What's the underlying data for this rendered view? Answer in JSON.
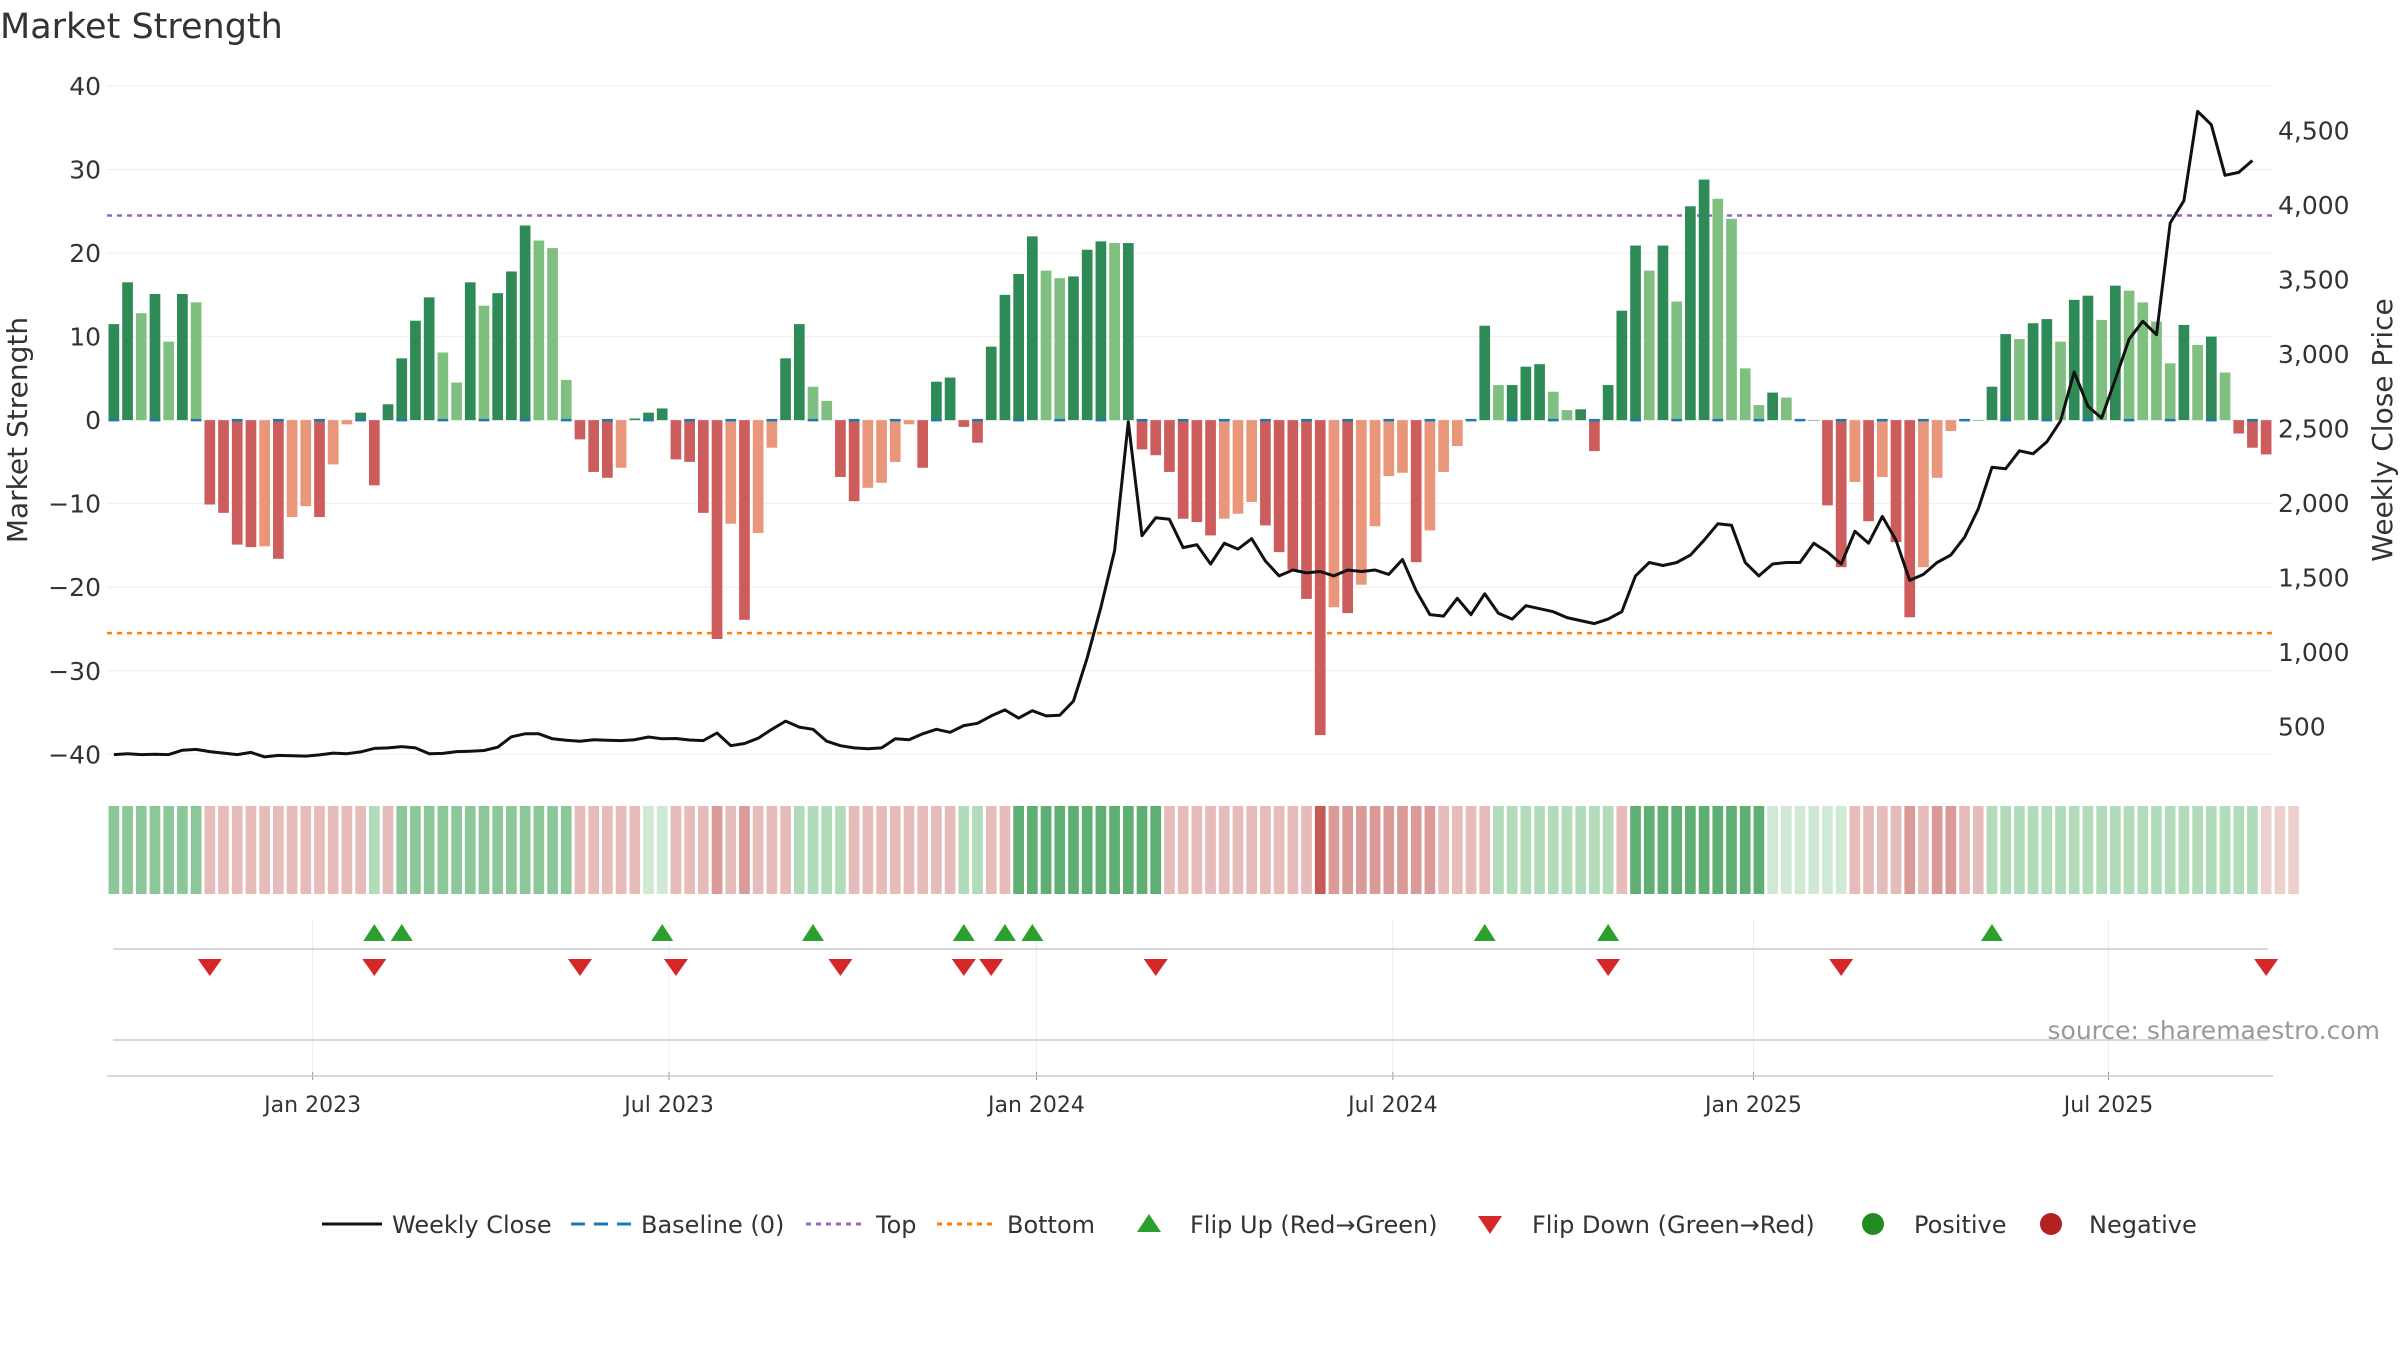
{
  "chart_data": {
    "type": "bar",
    "title": "Market Strength",
    "ylabel": "Market Strength",
    "y2label": "Weekly Close Price",
    "ylim": [
      -42,
      40
    ],
    "y2lim": [
      200,
      4800
    ],
    "yticks": [
      "40",
      "30",
      "20",
      "10",
      "0",
      "−10",
      "−20",
      "−30",
      "−40"
    ],
    "y2ticks": [
      "4,500",
      "4,000",
      "3,500",
      "3,000",
      "2,500",
      "2,000",
      "1,500",
      "1,000",
      "500"
    ],
    "xticks": [
      "Jan 2023",
      "Jul 2023",
      "Jan 2024",
      "Jul 2024",
      "Jan 2025",
      "Jul 2025"
    ],
    "top_line": 24.5,
    "bottom_line": -25.5,
    "source": "source: sharemaestro.com",
    "colors": {
      "pos_dark": "#2e8b57",
      "pos_light": "#7fbf7f",
      "neg_dark": "#cd5c5c",
      "neg_light": "#e9967a",
      "close": "#111111",
      "baseline": "#1f77b4",
      "top": "#9467bd",
      "bottom": "#ff7f0e",
      "flip_up": "#2ca02c",
      "flip_down": "#d62728",
      "positive": "#228b22",
      "negative": "#b22222"
    },
    "legend": [
      {
        "label": "Weekly Close",
        "kind": "line-close"
      },
      {
        "label": "Baseline (0)",
        "kind": "line-baseline"
      },
      {
        "label": "Top",
        "kind": "line-top"
      },
      {
        "label": "Bottom",
        "kind": "line-bottom"
      },
      {
        "label": "Flip Up (Red→Green)",
        "kind": "tri-up"
      },
      {
        "label": "Flip Down (Green→Red)",
        "kind": "tri-down"
      },
      {
        "label": "Positive",
        "kind": "dot-pos"
      },
      {
        "label": "Negative",
        "kind": "dot-neg"
      }
    ],
    "strength": [
      11.5,
      16.5,
      12.8,
      15.1,
      9.4,
      15.1,
      14.1,
      -10.1,
      -11.1,
      -14.9,
      -15.2,
      -15.1,
      -16.6,
      -11.6,
      -10.3,
      -11.6,
      -5.3,
      -0.5,
      0.9,
      -7.8,
      1.9,
      7.4,
      11.9,
      14.7,
      8.1,
      4.5,
      16.5,
      13.7,
      15.2,
      17.8,
      23.3,
      21.5,
      20.6,
      4.8,
      -2.3,
      -6.2,
      -6.9,
      -5.7,
      0.2,
      0.9,
      1.4,
      -4.7,
      -5.0,
      -11.1,
      -26.2,
      -12.4,
      -23.9,
      -13.5,
      -3.3,
      7.4,
      11.5,
      4.0,
      2.3,
      -6.8,
      -9.7,
      -8.1,
      -7.5,
      -5.0,
      -0.5,
      -5.7,
      4.6,
      5.1,
      -0.8,
      -2.7,
      8.8,
      15.0,
      17.5,
      22.0,
      17.9,
      17.0,
      17.2,
      20.4,
      21.4,
      21.2,
      21.2,
      -3.5,
      -4.2,
      -6.2,
      -11.8,
      -12.2,
      -13.8,
      -11.8,
      -11.2,
      -9.8,
      -12.6,
      -15.8,
      -17.9,
      -21.4,
      -37.7,
      -22.4,
      -23.1,
      -19.7,
      -12.7,
      -6.7,
      -6.3,
      -17.0,
      -13.2,
      -6.2,
      -3.1,
      0.0,
      11.3,
      4.2,
      4.2,
      6.4,
      6.7,
      3.4,
      1.2,
      1.3,
      -3.7,
      4.2,
      13.1,
      20.9,
      17.9,
      20.9,
      14.2,
      25.6,
      28.8,
      26.5,
      24.1,
      6.2,
      1.8,
      3.3,
      2.7,
      0.0,
      0.0,
      -10.2,
      -17.6,
      -7.4,
      -12.1,
      -6.8,
      -14.6,
      -23.6,
      -17.6,
      -6.9,
      -1.3,
      0.0,
      0.0,
      4.0,
      10.3,
      9.7,
      11.6,
      12.1,
      9.4,
      14.4,
      14.9,
      12.0,
      16.1,
      15.5,
      14.1,
      11.8,
      6.8,
      11.4,
      9.0,
      10.0,
      5.7,
      -1.6,
      -3.3,
      -4.1
    ],
    "close": [
      310,
      316,
      310,
      312,
      310,
      340,
      345,
      330,
      320,
      310,
      325,
      295,
      305,
      303,
      300,
      308,
      320,
      316,
      328,
      352,
      355,
      364,
      355,
      316,
      318,
      330,
      333,
      338,
      360,
      430,
      450,
      450,
      416,
      406,
      400,
      410,
      407,
      404,
      410,
      428,
      416,
      418,
      408,
      404,
      455,
      370,
      385,
      420,
      480,
      535,
      495,
      480,
      400,
      370,
      355,
      350,
      355,
      417,
      410,
      450,
      480,
      460,
      505,
      520,
      570,
      610,
      555,
      605,
      570,
      575,
      670,
      960,
      1300,
      1680,
      2545,
      1780,
      1900,
      1890,
      1700,
      1720,
      1590,
      1730,
      1690,
      1760,
      1610,
      1510,
      1550,
      1530,
      1540,
      1510,
      1550,
      1540,
      1550,
      1520,
      1620,
      1410,
      1250,
      1240,
      1360,
      1250,
      1390,
      1260,
      1220,
      1310,
      1290,
      1270,
      1230,
      1210,
      1190,
      1220,
      1270,
      1510,
      1600,
      1580,
      1600,
      1650,
      1750,
      1860,
      1850,
      1600,
      1510,
      1590,
      1600,
      1600,
      1730,
      1670,
      1590,
      1810,
      1730,
      1910,
      1750,
      1480,
      1520,
      1600,
      1650,
      1770,
      1960,
      2240,
      2230,
      2350,
      2330,
      2410,
      2550,
      2880,
      2650,
      2570,
      2830,
      3100,
      3220,
      3130,
      3880,
      4030,
      4630,
      4540,
      4200,
      4220,
      4300
    ],
    "flip_up": [
      19,
      21,
      40,
      51,
      62,
      65,
      67,
      100,
      109,
      137
    ],
    "flip_down": [
      7,
      19,
      34,
      41,
      53,
      62,
      64,
      76,
      109,
      126,
      157
    ],
    "segments": [
      {
        "end": 6,
        "sign": "pos",
        "shade": "mid"
      },
      {
        "end": 18,
        "sign": "neg",
        "shade": "light"
      },
      {
        "end": 19,
        "sign": "pos",
        "shade": "light"
      },
      {
        "end": 20,
        "sign": "neg",
        "shade": "light"
      },
      {
        "end": 33,
        "sign": "pos",
        "shade": "mid"
      },
      {
        "end": 38,
        "sign": "neg",
        "shade": "light"
      },
      {
        "end": 40,
        "sign": "pos",
        "shade": "faint"
      },
      {
        "end": 43,
        "sign": "neg",
        "shade": "light"
      },
      {
        "end": 44,
        "sign": "neg",
        "shade": "mid"
      },
      {
        "end": 45,
        "sign": "neg",
        "shade": "light"
      },
      {
        "end": 46,
        "sign": "neg",
        "shade": "mid"
      },
      {
        "end": 49,
        "sign": "neg",
        "shade": "light"
      },
      {
        "end": 53,
        "sign": "pos",
        "shade": "light"
      },
      {
        "end": 61,
        "sign": "neg",
        "shade": "light"
      },
      {
        "end": 63,
        "sign": "pos",
        "shade": "light"
      },
      {
        "end": 65,
        "sign": "neg",
        "shade": "light"
      },
      {
        "end": 76,
        "sign": "pos",
        "shade": "dark"
      },
      {
        "end": 87,
        "sign": "neg",
        "shade": "light"
      },
      {
        "end": 88,
        "sign": "neg",
        "shade": "dark"
      },
      {
        "end": 89,
        "sign": "neg",
        "shade": "mid"
      },
      {
        "end": 96,
        "sign": "neg",
        "shade": "mid"
      },
      {
        "end": 100,
        "sign": "neg",
        "shade": "light"
      },
      {
        "end": 109,
        "sign": "pos",
        "shade": "light"
      },
      {
        "end": 110,
        "sign": "neg",
        "shade": "light"
      },
      {
        "end": 120,
        "sign": "pos",
        "shade": "dark"
      },
      {
        "end": 126,
        "sign": "pos",
        "shade": "faint"
      },
      {
        "end": 130,
        "sign": "neg",
        "shade": "light"
      },
      {
        "end": 131,
        "sign": "neg",
        "shade": "mid"
      },
      {
        "end": 132,
        "sign": "neg",
        "shade": "light"
      },
      {
        "end": 134,
        "sign": "neg",
        "shade": "mid"
      },
      {
        "end": 136,
        "sign": "neg",
        "shade": "light"
      },
      {
        "end": 156,
        "sign": "pos",
        "shade": "light"
      },
      {
        "end": 159,
        "sign": "neg",
        "shade": "faint"
      }
    ]
  }
}
